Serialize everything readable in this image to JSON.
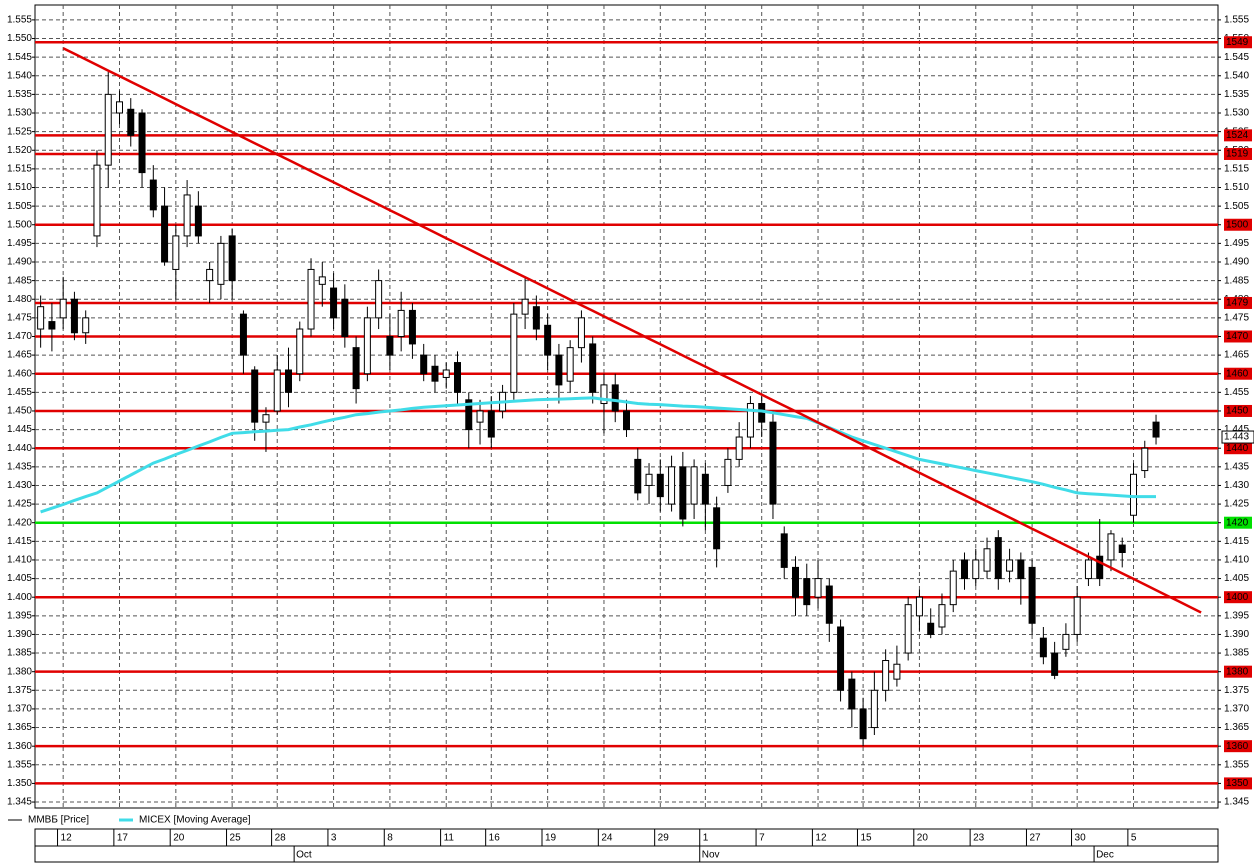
{
  "chart_data": {
    "type": "candlestick",
    "categories": [
      null,
      null,
      "12",
      null,
      null,
      null,
      null,
      "17",
      null,
      null,
      null,
      null,
      "20",
      null,
      null,
      null,
      null,
      "25",
      null,
      null,
      null,
      "28",
      null,
      null,
      null,
      null,
      "3",
      null,
      null,
      null,
      null,
      "8",
      null,
      null,
      null,
      null,
      "11",
      null,
      null,
      null,
      "16",
      null,
      null,
      null,
      null,
      "19",
      null,
      null,
      null,
      null,
      "24",
      null,
      null,
      null,
      null,
      "29",
      null,
      null,
      null,
      "1",
      null,
      null,
      null,
      null,
      "7",
      null,
      null,
      null,
      null,
      "12",
      null,
      null,
      null,
      "15",
      null,
      null,
      null,
      null,
      "20",
      null,
      null,
      null,
      null,
      "23",
      null,
      null,
      null,
      null,
      "27",
      null,
      null,
      null,
      "30",
      null,
      null,
      null,
      null,
      "5",
      null,
      null,
      null,
      null,
      null,
      null
    ],
    "months": [
      null,
      null,
      null,
      null,
      null,
      null,
      null,
      null,
      null,
      null,
      null,
      null,
      null,
      null,
      null,
      null,
      null,
      null,
      null,
      null,
      null,
      null,
      null,
      "Oct",
      null,
      null,
      null,
      null,
      null,
      null,
      null,
      null,
      null,
      null,
      null,
      null,
      null,
      null,
      null,
      null,
      null,
      null,
      null,
      null,
      null,
      null,
      null,
      null,
      null,
      null,
      null,
      null,
      null,
      null,
      null,
      null,
      null,
      null,
      null,
      "Nov",
      null,
      null,
      null,
      null,
      null,
      null,
      null,
      null,
      null,
      null,
      null,
      null,
      null,
      null,
      null,
      null,
      null,
      null,
      null,
      null,
      null,
      null,
      null,
      null,
      null,
      null,
      null,
      null,
      null,
      null,
      null,
      null,
      null,
      null,
      "Dec",
      null,
      null,
      null,
      null,
      null,
      null,
      null,
      null,
      null
    ],
    "series": [
      {
        "name": "ММВБ [Price]",
        "color": "#000000",
        "open": [
          1.472,
          1.474,
          1.475,
          1.48,
          1.471,
          1.497,
          1.516,
          1.53,
          1.531,
          1.53,
          1.512,
          1.505,
          1.488,
          1.497,
          1.505,
          1.485,
          1.484,
          1.497,
          1.476,
          1.461,
          1.447,
          1.45,
          1.461,
          1.46,
          1.472,
          1.484,
          1.483,
          1.48,
          1.467,
          1.46,
          1.475,
          1.47,
          1.47,
          1.477,
          1.465,
          1.462,
          1.459,
          1.463,
          1.453,
          1.447,
          1.45,
          1.45,
          1.455,
          1.476,
          1.478,
          1.473,
          1.465,
          1.458,
          1.467,
          1.468,
          1.452,
          1.457,
          1.45,
          1.437,
          1.43,
          1.433,
          1.425,
          1.435,
          1.425,
          1.433,
          1.424,
          1.43,
          1.437,
          1.443,
          1.452,
          1.447,
          1.417,
          1.408,
          1.405,
          1.4,
          1.403,
          1.392,
          1.378,
          1.37,
          1.365,
          1.375,
          1.378,
          1.385,
          1.395,
          1.393,
          1.392,
          1.398,
          1.41,
          1.405,
          1.407,
          1.416,
          1.407,
          1.41,
          1.408,
          1.389,
          1.385,
          1.386,
          1.39,
          1.405,
          1.411,
          1.41,
          1.414,
          1.422,
          1.434,
          1.447,
          null,
          null,
          null,
          null
        ],
        "high": [
          1.481,
          1.479,
          1.486,
          1.482,
          1.477,
          1.52,
          1.541,
          1.536,
          1.534,
          1.531,
          1.516,
          1.51,
          1.5,
          1.512,
          1.509,
          1.49,
          1.497,
          1.499,
          1.477,
          1.462,
          1.451,
          1.465,
          1.467,
          1.474,
          1.491,
          1.49,
          1.487,
          1.484,
          1.47,
          1.478,
          1.488,
          1.476,
          1.482,
          1.479,
          1.468,
          1.465,
          1.463,
          1.466,
          1.455,
          1.453,
          1.454,
          1.457,
          1.479,
          1.486,
          1.481,
          1.476,
          1.468,
          1.469,
          1.477,
          1.47,
          1.46,
          1.46,
          1.453,
          1.44,
          1.436,
          1.437,
          1.438,
          1.439,
          1.437,
          1.436,
          1.427,
          1.44,
          1.447,
          1.454,
          1.454,
          1.45,
          1.419,
          1.411,
          1.409,
          1.41,
          1.405,
          1.394,
          1.38,
          1.373,
          1.38,
          1.386,
          1.387,
          1.4,
          1.402,
          1.397,
          1.401,
          1.41,
          1.412,
          1.413,
          1.416,
          1.418,
          1.413,
          1.412,
          1.41,
          1.392,
          1.388,
          1.393,
          1.403,
          1.412,
          1.421,
          1.418,
          1.416,
          1.436,
          1.442,
          1.449,
          null,
          null,
          null,
          null
        ],
        "low": [
          1.467,
          1.466,
          1.472,
          1.469,
          1.468,
          1.494,
          1.51,
          1.527,
          1.521,
          1.51,
          1.502,
          1.489,
          1.48,
          1.494,
          1.495,
          1.479,
          1.48,
          1.48,
          1.46,
          1.442,
          1.439,
          1.449,
          1.451,
          1.458,
          1.47,
          1.478,
          1.472,
          1.467,
          1.452,
          1.458,
          1.472,
          1.461,
          1.466,
          1.464,
          1.458,
          1.455,
          1.456,
          1.452,
          1.44,
          1.441,
          1.44,
          1.448,
          1.453,
          1.472,
          1.469,
          1.461,
          1.452,
          1.455,
          1.463,
          1.452,
          1.444,
          1.447,
          1.443,
          1.426,
          1.425,
          1.423,
          1.423,
          1.419,
          1.421,
          1.418,
          1.408,
          1.428,
          1.435,
          1.44,
          1.443,
          1.421,
          1.405,
          1.395,
          1.395,
          1.397,
          1.388,
          1.372,
          1.365,
          1.36,
          1.363,
          1.372,
          1.376,
          1.383,
          1.391,
          1.389,
          1.39,
          1.396,
          1.402,
          1.403,
          1.405,
          1.402,
          1.404,
          1.398,
          1.39,
          1.382,
          1.378,
          1.384,
          1.388,
          1.403,
          1.403,
          1.407,
          1.408,
          1.42,
          1.432,
          1.441,
          null,
          null,
          null,
          null
        ],
        "close": [
          1.478,
          1.472,
          1.48,
          1.471,
          1.475,
          1.516,
          1.535,
          1.533,
          1.524,
          1.514,
          1.504,
          1.49,
          1.497,
          1.508,
          1.497,
          1.488,
          1.495,
          1.485,
          1.465,
          1.447,
          1.449,
          1.461,
          1.455,
          1.472,
          1.488,
          1.486,
          1.475,
          1.47,
          1.456,
          1.475,
          1.485,
          1.465,
          1.477,
          1.468,
          1.46,
          1.458,
          1.461,
          1.455,
          1.445,
          1.45,
          1.443,
          1.455,
          1.476,
          1.48,
          1.472,
          1.465,
          1.457,
          1.467,
          1.475,
          1.455,
          1.457,
          1.45,
          1.445,
          1.428,
          1.433,
          1.427,
          1.435,
          1.421,
          1.435,
          1.425,
          1.413,
          1.437,
          1.443,
          1.452,
          1.447,
          1.425,
          1.408,
          1.4,
          1.398,
          1.405,
          1.393,
          1.375,
          1.37,
          1.362,
          1.375,
          1.383,
          1.382,
          1.398,
          1.4,
          1.39,
          1.398,
          1.407,
          1.405,
          1.41,
          1.413,
          1.405,
          1.41,
          1.405,
          1.393,
          1.384,
          1.379,
          1.39,
          1.4,
          1.41,
          1.405,
          1.417,
          1.412,
          1.433,
          1.44,
          1.443,
          null,
          null,
          null,
          null
        ]
      },
      {
        "name": "MICEX [Moving Average]",
        "color": "#40dce8",
        "values": [
          1.4229,
          1.4239,
          1.4249,
          1.426,
          1.427,
          1.428,
          1.4296,
          1.4312,
          1.4328,
          1.4344,
          1.436,
          1.4371,
          1.4383,
          1.4394,
          1.4406,
          1.4417,
          1.4429,
          1.444,
          1.4442,
          1.4444,
          1.4446,
          1.4448,
          1.445,
          1.4457,
          1.4463,
          1.447,
          1.4477,
          1.4483,
          1.449,
          1.4493,
          1.4497,
          1.45,
          1.4503,
          1.4507,
          1.451,
          1.4512,
          1.4514,
          1.4516,
          1.4518,
          1.452,
          1.4522,
          1.4524,
          1.4526,
          1.4528,
          1.453,
          1.4531,
          1.4532,
          1.4533,
          1.4534,
          1.4535,
          1.4531,
          1.4528,
          1.4524,
          1.452,
          1.4518,
          1.4517,
          1.4515,
          1.4513,
          1.4512,
          1.451,
          1.4508,
          1.4506,
          1.4504,
          1.4502,
          1.45,
          1.4495,
          1.449,
          1.4485,
          1.448,
          1.4468,
          1.4455,
          1.4443,
          1.443,
          1.442,
          1.441,
          1.44,
          1.439,
          1.438,
          1.437,
          1.4364,
          1.4358,
          1.4352,
          1.4346,
          1.434,
          1.4334,
          1.4328,
          1.4322,
          1.4316,
          1.431,
          1.4303,
          1.4295,
          1.4288,
          1.428,
          1.4278,
          1.4276,
          1.4274,
          1.4272,
          1.427,
          1.427,
          1.427,
          null,
          null,
          null,
          null
        ]
      }
    ],
    "trendline": {
      "color": "#e00000",
      "values": [
        null,
        null,
        1.5474,
        1.5459,
        1.5444,
        1.5429,
        1.5414,
        1.5399,
        1.5384,
        1.5369,
        1.5354,
        1.5339,
        1.5324,
        1.5309,
        1.5294,
        1.5279,
        1.5264,
        1.5249,
        1.5234,
        1.5219,
        1.5204,
        1.5189,
        1.5174,
        1.5159,
        1.5144,
        1.5129,
        1.5114,
        1.5099,
        1.5084,
        1.5069,
        1.5054,
        1.5039,
        1.5024,
        1.5009,
        1.4994,
        1.4979,
        1.4964,
        1.4949,
        1.4934,
        1.4919,
        1.4904,
        1.4889,
        1.4874,
        1.4859,
        1.4844,
        1.4829,
        1.4814,
        1.4799,
        1.4784,
        1.4769,
        1.4754,
        1.4739,
        1.4724,
        1.4709,
        1.4694,
        1.4679,
        1.4664,
        1.4649,
        1.4634,
        1.4619,
        1.4604,
        1.4589,
        1.4574,
        1.4559,
        1.4544,
        1.4529,
        1.4514,
        1.4499,
        1.4484,
        1.4469,
        1.4454,
        1.4439,
        1.4424,
        1.4409,
        1.4394,
        1.4379,
        1.4364,
        1.4349,
        1.4334,
        1.4319,
        1.4304,
        1.4289,
        1.4274,
        1.4259,
        1.4244,
        1.4229,
        1.4214,
        1.4199,
        1.4184,
        1.4169,
        1.4154,
        1.4139,
        1.4124,
        1.4109,
        1.4094,
        1.4079,
        1.4064,
        1.4049,
        1.4034,
        1.4019,
        1.4004,
        1.3989,
        1.3974,
        1.3959
      ]
    },
    "levels": [
      {
        "value": 1.549,
        "label": "1549",
        "color": "#e00000"
      },
      {
        "value": 1.524,
        "label": "1524",
        "color": "#e00000"
      },
      {
        "value": 1.519,
        "label": "1519",
        "color": "#e00000"
      },
      {
        "value": 1.5,
        "label": "1500",
        "color": "#e00000"
      },
      {
        "value": 1.479,
        "label": "1479",
        "color": "#e00000"
      },
      {
        "value": 1.47,
        "label": "1470",
        "color": "#e00000"
      },
      {
        "value": 1.46,
        "label": "1460",
        "color": "#e00000"
      },
      {
        "value": 1.45,
        "label": "1450",
        "color": "#e00000"
      },
      {
        "value": 1.44,
        "label": "1440",
        "color": "#e00000"
      },
      {
        "value": 1.42,
        "label": "1420",
        "color": "#00e000"
      },
      {
        "value": 1.4,
        "label": "1400",
        "color": "#e00000"
      },
      {
        "value": 1.38,
        "label": "1380",
        "color": "#e00000"
      },
      {
        "value": 1.36,
        "label": "1360",
        "color": "#e00000"
      },
      {
        "value": 1.35,
        "label": "1350",
        "color": "#e00000"
      }
    ],
    "last_price": {
      "value": 1.443,
      "label": "1.443"
    },
    "ylim": [
      1.3434,
      1.559
    ],
    "yticks": [
      1.345,
      {
        "value": 1.35,
        "label": "1.350"
      },
      1.355,
      {
        "value": 1.36,
        "label": "1.360"
      },
      1.365,
      {
        "value": 1.37,
        "label": "1.370"
      },
      1.375,
      {
        "value": 1.38,
        "label": "1.380"
      },
      1.385,
      {
        "value": 1.39,
        "label": "1.390"
      },
      1.395,
      {
        "value": 1.4,
        "label": "1.400"
      },
      1.405,
      {
        "value": 1.41,
        "label": "1.410"
      },
      1.415,
      {
        "value": 1.42,
        "label": "1.420"
      },
      1.425,
      {
        "value": 1.43,
        "label": "1.430"
      },
      1.435,
      {
        "value": 1.44,
        "label": "1.440"
      },
      1.445,
      {
        "value": 1.45,
        "label": "1.450"
      },
      1.455,
      {
        "value": 1.46,
        "label": "1.460"
      },
      1.465,
      {
        "value": 1.47,
        "label": "1.470"
      },
      1.475,
      {
        "value": 1.48,
        "label": "1.480"
      },
      1.485,
      {
        "value": 1.49,
        "label": "1.490"
      },
      1.495,
      {
        "value": 1.5,
        "label": "1.500"
      },
      1.505,
      {
        "value": 1.51,
        "label": "1.510"
      },
      1.515,
      {
        "value": 1.52,
        "label": "1.520"
      },
      1.525,
      {
        "value": 1.53,
        "label": "1.530"
      },
      1.535,
      {
        "value": 1.54,
        "label": "1.540"
      },
      1.545,
      {
        "value": 1.55,
        "label": "1.550"
      },
      1.555
    ],
    "grid": true
  }
}
